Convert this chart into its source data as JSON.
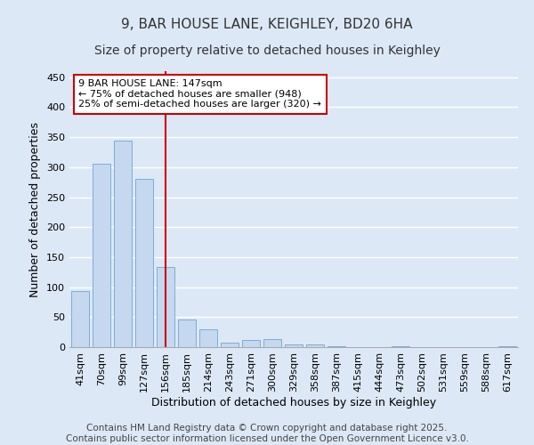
{
  "title": "9, BAR HOUSE LANE, KEIGHLEY, BD20 6HA",
  "subtitle": "Size of property relative to detached houses in Keighley",
  "xlabel": "Distribution of detached houses by size in Keighley",
  "ylabel": "Number of detached properties",
  "categories": [
    "41sqm",
    "70sqm",
    "99sqm",
    "127sqm",
    "156sqm",
    "185sqm",
    "214sqm",
    "243sqm",
    "271sqm",
    "300sqm",
    "329sqm",
    "358sqm",
    "387sqm",
    "415sqm",
    "444sqm",
    "473sqm",
    "502sqm",
    "531sqm",
    "559sqm",
    "588sqm",
    "617sqm"
  ],
  "values": [
    93,
    305,
    345,
    280,
    133,
    46,
    29,
    8,
    12,
    13,
    5,
    4,
    1,
    0,
    0,
    1,
    0,
    0,
    0,
    0,
    1
  ],
  "bar_color": "#c5d8f0",
  "bar_edge_color": "#7aaed6",
  "vline_x": 4,
  "vline_color": "#cc0000",
  "annotation_text": "9 BAR HOUSE LANE: 147sqm\n← 75% of detached houses are smaller (948)\n25% of semi-detached houses are larger (320) →",
  "annotation_box_facecolor": "#ffffff",
  "annotation_box_edgecolor": "#cc0000",
  "ylim": [
    0,
    460
  ],
  "yticks": [
    0,
    50,
    100,
    150,
    200,
    250,
    300,
    350,
    400,
    450
  ],
  "background_color": "#dce8f5",
  "plot_background_color": "#dce8f5",
  "grid_color": "#ffffff",
  "footer_text": "Contains HM Land Registry data © Crown copyright and database right 2025.\nContains public sector information licensed under the Open Government Licence v3.0.",
  "title_fontsize": 11,
  "subtitle_fontsize": 10,
  "axis_label_fontsize": 9,
  "tick_fontsize": 8,
  "annotation_fontsize": 8,
  "footer_fontsize": 7.5
}
